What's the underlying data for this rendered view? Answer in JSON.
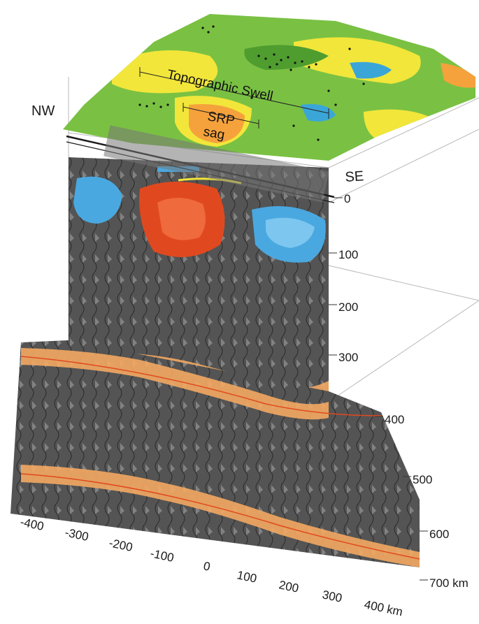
{
  "labels": {
    "nw": "NW",
    "se": "SE",
    "topographic_swell": "Topographic Swell",
    "srp": "SRP",
    "sag": "sag"
  },
  "depth_ticks": [
    "0",
    "100",
    "200",
    "300",
    "400",
    "500",
    "600",
    "700 km"
  ],
  "distance_ticks": [
    "-400",
    "-300",
    "-200",
    "-100",
    "0",
    "100",
    "200",
    "300",
    "400 km"
  ],
  "colors": {
    "topo_green": "#7ac143",
    "topo_yellow": "#f2e63a",
    "topo_orange": "#f5a23c",
    "topo_blue": "#3aa6d8",
    "section_gray": "#545454",
    "slow_red": "#e0491f",
    "fast_blue": "#4aa8e0",
    "discontinuity_orange": "#f4a862"
  }
}
